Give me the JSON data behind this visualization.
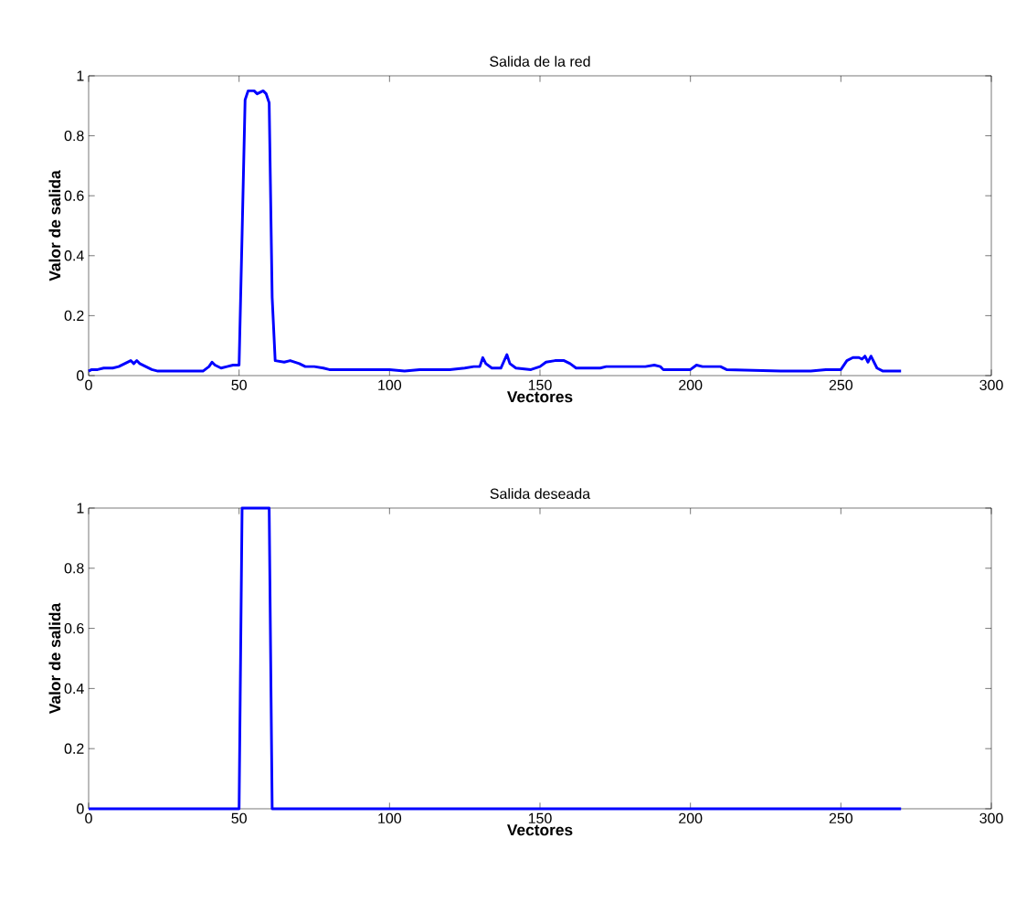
{
  "chart_data": [
    {
      "type": "line",
      "title": "Salida de la red",
      "xlabel": "Vectores",
      "ylabel": "Valor de salida",
      "x": [
        0,
        1,
        3,
        5,
        8,
        10,
        12,
        14,
        15,
        16,
        17,
        19,
        21,
        23,
        30,
        38,
        40,
        41,
        42,
        44,
        46,
        48,
        50,
        51,
        52,
        53,
        55,
        56,
        58,
        59,
        60,
        61,
        62,
        65,
        67,
        70,
        72,
        75,
        78,
        80,
        100,
        105,
        110,
        120,
        125,
        128,
        130,
        131,
        132,
        134,
        137,
        139,
        140,
        142,
        147,
        150,
        152,
        155,
        158,
        160,
        162,
        170,
        172,
        178,
        185,
        188,
        190,
        191,
        200,
        202,
        204,
        210,
        212,
        230,
        240,
        245,
        250,
        252,
        254,
        256,
        257,
        258,
        259,
        260,
        262,
        264,
        270
      ],
      "series": [
        {
          "color": "#0000ff",
          "values": [
            0.015,
            0.02,
            0.02,
            0.025,
            0.025,
            0.03,
            0.04,
            0.05,
            0.04,
            0.05,
            0.04,
            0.03,
            0.02,
            0.015,
            0.015,
            0.015,
            0.03,
            0.045,
            0.035,
            0.025,
            0.03,
            0.035,
            0.035,
            0.47,
            0.92,
            0.95,
            0.95,
            0.94,
            0.95,
            0.94,
            0.91,
            0.26,
            0.05,
            0.045,
            0.05,
            0.04,
            0.03,
            0.03,
            0.025,
            0.02,
            0.02,
            0.015,
            0.02,
            0.02,
            0.025,
            0.03,
            0.03,
            0.06,
            0.04,
            0.025,
            0.025,
            0.07,
            0.04,
            0.025,
            0.02,
            0.03,
            0.045,
            0.05,
            0.05,
            0.04,
            0.025,
            0.025,
            0.03,
            0.03,
            0.03,
            0.035,
            0.03,
            0.02,
            0.02,
            0.035,
            0.03,
            0.03,
            0.02,
            0.015,
            0.015,
            0.02,
            0.02,
            0.05,
            0.06,
            0.06,
            0.055,
            0.065,
            0.045,
            0.065,
            0.025,
            0.015,
            0.015
          ]
        }
      ],
      "xlim": [
        0,
        300
      ],
      "ylim": [
        0,
        1
      ],
      "xticks": [
        0,
        50,
        100,
        150,
        200,
        250,
        300
      ],
      "yticks": [
        0,
        0.2,
        0.4,
        0.6,
        0.8,
        1
      ],
      "grid": false
    },
    {
      "type": "line",
      "title": "Salida deseada",
      "xlabel": "Vectores",
      "ylabel": "Valor de salida",
      "x": [
        0,
        50,
        51,
        60,
        61,
        270
      ],
      "series": [
        {
          "color": "#0000ff",
          "values": [
            0,
            0,
            1,
            1,
            0,
            0
          ]
        }
      ],
      "xlim": [
        0,
        300
      ],
      "ylim": [
        0,
        1
      ],
      "xticks": [
        0,
        50,
        100,
        150,
        200,
        250,
        300
      ],
      "yticks": [
        0,
        0.2,
        0.4,
        0.6,
        0.8,
        1
      ],
      "grid": false
    }
  ]
}
